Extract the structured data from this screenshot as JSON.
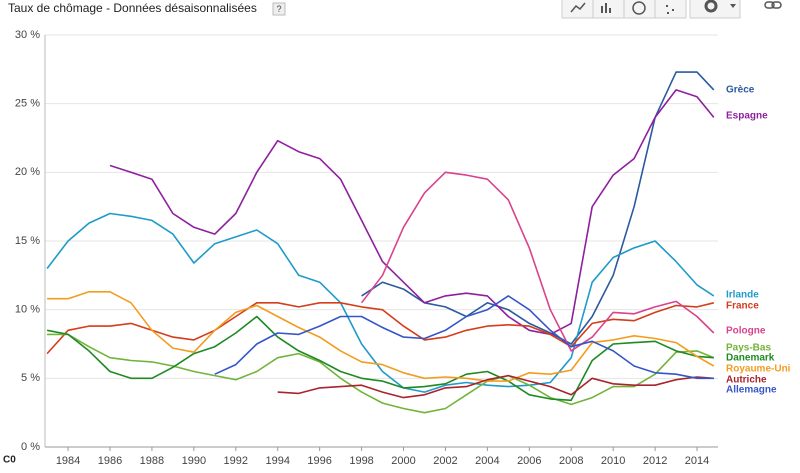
{
  "chart_data": {
    "type": "line",
    "title": "Taux de chômage - Données désaisonnalisées",
    "help": "?",
    "footer": "C0",
    "x": [
      1983,
      1984,
      1985,
      1986,
      1987,
      1988,
      1989,
      1990,
      1991,
      1992,
      1993,
      1994,
      1995,
      1996,
      1997,
      1998,
      1999,
      2000,
      2001,
      2002,
      2003,
      2004,
      2005,
      2006,
      2007,
      2008,
      2009,
      2010,
      2011,
      2012,
      2013,
      2014,
      2014.8
    ],
    "xlim": [
      1982.9,
      2015.0
    ],
    "xticks": [
      1984,
      1986,
      1988,
      1990,
      1992,
      1994,
      1996,
      1998,
      2000,
      2002,
      2004,
      2006,
      2008,
      2010,
      2012,
      2014
    ],
    "ylim": [
      0,
      30
    ],
    "yticks": [
      {
        "value": 0,
        "label": "0 %"
      },
      {
        "value": 5,
        "label": "5 %"
      },
      {
        "value": 10,
        "label": "10 %"
      },
      {
        "value": 15,
        "label": "15 %"
      },
      {
        "value": 20,
        "label": "20 %"
      },
      {
        "value": 25,
        "label": "25 %"
      },
      {
        "value": 30,
        "label": "30 %"
      }
    ],
    "grid": true,
    "series": [
      {
        "name": "Grèce",
        "color": "#2b5aa0",
        "values": [
          null,
          null,
          null,
          null,
          null,
          null,
          null,
          null,
          null,
          null,
          null,
          null,
          null,
          null,
          null,
          11,
          12,
          11.5,
          10.5,
          10.2,
          9.5,
          10.5,
          10,
          9,
          8.3,
          7.5,
          9.5,
          12.5,
          17.5,
          24,
          27.3,
          27.3,
          26
        ]
      },
      {
        "name": "Espagne",
        "color": "#8e1f9e",
        "values": [
          null,
          null,
          null,
          20.5,
          20,
          19.5,
          17,
          16,
          15.5,
          17,
          20,
          22.3,
          21.5,
          21,
          19.5,
          16.5,
          13.5,
          12,
          10.5,
          11,
          11.2,
          11,
          9.5,
          8.5,
          8.2,
          9,
          17.5,
          19.8,
          21,
          24,
          26,
          25.5,
          24
        ]
      },
      {
        "name": "Irlande",
        "color": "#1f9bc9",
        "values": [
          13,
          15,
          16.3,
          17,
          16.8,
          16.5,
          15.5,
          13.4,
          14.8,
          15.3,
          15.8,
          14.8,
          12.5,
          12,
          10.5,
          7.5,
          5.5,
          4.3,
          4,
          4.5,
          4.7,
          4.5,
          4.4,
          4.5,
          4.7,
          6.5,
          12,
          13.8,
          14.5,
          15,
          13.5,
          11.8,
          11
        ]
      },
      {
        "name": "France",
        "color": "#d43d1a",
        "values": [
          6.8,
          8.5,
          8.8,
          8.8,
          9.0,
          8.5,
          8,
          7.8,
          8.5,
          9.5,
          10.5,
          10.5,
          10.2,
          10.5,
          10.5,
          10.2,
          10,
          8.8,
          7.8,
          8,
          8.5,
          8.8,
          8.9,
          8.8,
          8.2,
          7.3,
          9,
          9.3,
          9.2,
          9.8,
          10.3,
          10.2,
          10.5
        ]
      },
      {
        "name": "Pologne",
        "color": "#d9438b",
        "values": [
          null,
          null,
          null,
          null,
          null,
          null,
          null,
          null,
          null,
          null,
          null,
          null,
          null,
          null,
          null,
          10.5,
          12.5,
          16,
          18.5,
          20,
          19.8,
          19.5,
          18,
          14.5,
          10,
          7,
          8,
          9.8,
          9.7,
          10.2,
          10.6,
          9.5,
          8.3
        ]
      },
      {
        "name": "Pays-Bas",
        "color": "#72b33a",
        "values": [
          8.2,
          8.2,
          7.3,
          6.5,
          6.3,
          6.2,
          5.9,
          5.5,
          5.2,
          4.9,
          5.5,
          6.5,
          6.8,
          6.2,
          5,
          4,
          3.2,
          2.8,
          2.5,
          2.8,
          3.8,
          4.8,
          5.2,
          4.5,
          3.6,
          3.1,
          3.6,
          4.4,
          4.4,
          5.3,
          6.9,
          7.0,
          6.5
        ]
      },
      {
        "name": "Danemark",
        "color": "#1e8a22",
        "values": [
          8.5,
          8.2,
          7.0,
          5.5,
          5.0,
          5.0,
          5.8,
          6.8,
          7.3,
          8.3,
          9.5,
          8,
          7,
          6.3,
          5.5,
          5,
          4.8,
          4.3,
          4.4,
          4.6,
          5.3,
          5.5,
          4.8,
          3.8,
          3.5,
          3.4,
          6.3,
          7.5,
          7.6,
          7.7,
          7.0,
          6.6,
          6.5
        ]
      },
      {
        "name": "Royaume-Uni",
        "color": "#f29d1f",
        "values": [
          10.8,
          10.8,
          11.3,
          11.3,
          10.5,
          8.5,
          7.2,
          6.9,
          8.5,
          9.8,
          10.3,
          9.5,
          8.7,
          8.0,
          7,
          6.2,
          6,
          5.4,
          5,
          5.1,
          5,
          4.8,
          4.8,
          5.4,
          5.3,
          5.6,
          7.6,
          7.8,
          8.1,
          7.9,
          7.6,
          6.6,
          5.9
        ]
      },
      {
        "name": "Autriche",
        "color": "#a8242c",
        "values": [
          null,
          null,
          null,
          null,
          null,
          null,
          null,
          null,
          null,
          null,
          null,
          4,
          3.9,
          4.3,
          4.4,
          4.5,
          4,
          3.6,
          3.8,
          4.3,
          4.4,
          4.9,
          5.2,
          4.8,
          4.4,
          3.8,
          5.0,
          4.6,
          4.5,
          4.5,
          4.9,
          5.1,
          5.0
        ]
      },
      {
        "name": "Allemagne",
        "color": "#3556c8",
        "values": [
          null,
          null,
          null,
          null,
          null,
          null,
          null,
          null,
          5.3,
          6,
          7.5,
          8.3,
          8.2,
          8.8,
          9.5,
          9.5,
          8.7,
          8,
          7.9,
          8.5,
          9.5,
          10,
          11,
          10,
          8.5,
          7.3,
          7.7,
          7,
          5.9,
          5.4,
          5.3,
          5,
          5
        ]
      }
    ]
  }
}
